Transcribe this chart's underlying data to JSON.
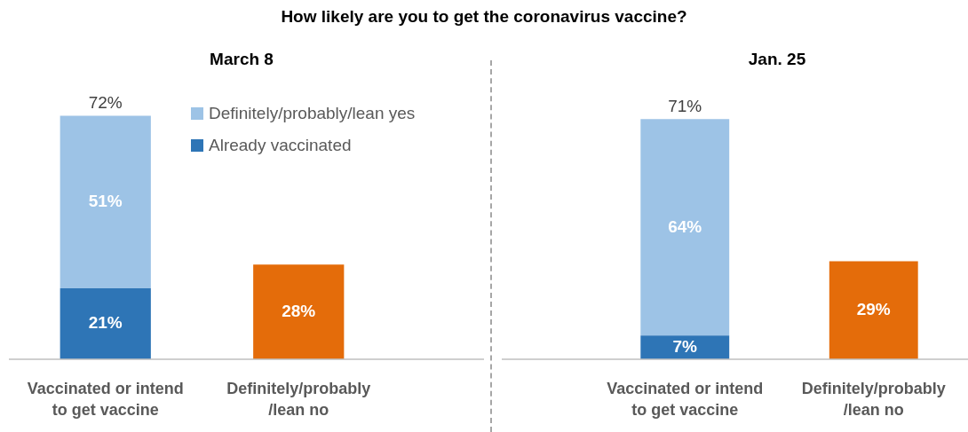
{
  "chart_data": [
    {
      "type": "bar",
      "title": "How likely are you to get the coronavirus vaccine?",
      "subtitle": "March 8",
      "categories": [
        "Vaccinated or intend\nto get vaccine",
        "Definitely/probably\n/lean no"
      ],
      "stacked": true,
      "tick_labels": "x",
      "legend": "top",
      "totals": [
        "72%",
        null
      ],
      "series": [
        {
          "name": "Already vaccinated",
          "color": "#2e75b6",
          "values": [
            21,
            null
          ],
          "value_labels": [
            "21%",
            null
          ]
        },
        {
          "name": "Definitely/probably/lean yes",
          "color": "#9dc3e6",
          "values": [
            51,
            null
          ],
          "value_labels": [
            "51%",
            null
          ]
        },
        {
          "color": "#e46c0a",
          "values": [
            null,
            28
          ],
          "value_labels": [
            null,
            "28%"
          ]
        }
      ]
    },
    {
      "type": "bar",
      "subtitle": "Jan. 25",
      "categories": [
        "Vaccinated or intend\nto get vaccine",
        "Definitely/probably\n/lean no"
      ],
      "stacked": true,
      "tick_labels": "x",
      "totals": [
        "71%",
        null
      ],
      "series": [
        {
          "color": "#2e75b6",
          "values": [
            7,
            null
          ],
          "value_labels": [
            "7%",
            null
          ]
        },
        {
          "color": "#9dc3e6",
          "values": [
            64,
            null
          ],
          "value_labels": [
            "64%",
            null
          ]
        },
        {
          "color": "#e46c0a",
          "values": [
            null,
            29
          ],
          "value_labels": [
            null,
            "29%"
          ]
        }
      ]
    }
  ]
}
